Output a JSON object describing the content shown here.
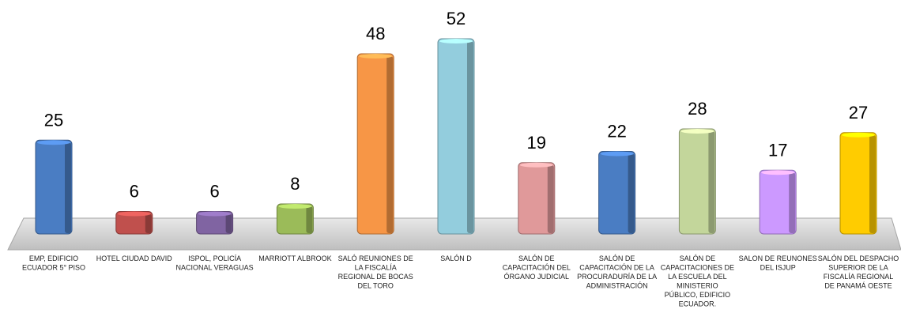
{
  "chart_data": {
    "type": "bar",
    "title": "",
    "xlabel": "",
    "ylabel": "",
    "ylim": [
      0,
      55
    ],
    "grid": false,
    "legend": "none",
    "categories": [
      "EMP, EDIFICIO ECUADOR 5° PISO",
      "HOTEL CIUDAD DAVID",
      "ISPOL, POLICÍA NACIONAL VERAGUAS",
      "MARRIOTT ALBROOK",
      "SALÓ REUNIONES DE LA FISCALÍA REGIONAL DE BOCAS DEL TORO",
      "SALÓN D",
      "SALÓN DE CAPACITACIÓN  DEL ÓRGANO JUDICIAL",
      "SALÓN DE CAPACITACIÓN DE LA PROCURADURÍA DE LA ADMINISTRACIÓN",
      "SALÓN DE CAPACITACIONES DE LA ESCUELA DEL MINISTERIO PÚBLICO, EDIFICIO ECUADOR.",
      "SALON DE REUNONES DEL ISJUP",
      "SALÓN DEL DESPACHO SUPERIOR DE LA FISCALÍA REGIONAL DE PANAMÁ OESTE"
    ],
    "values": [
      25,
      6,
      6,
      8,
      48,
      52,
      19,
      22,
      28,
      17,
      27
    ],
    "colors": [
      "#4a7dc3",
      "#c0504d",
      "#8064a2",
      "#9bbb59",
      "#f79646",
      "#93cddd",
      "#e0999a",
      "#4a7dc3",
      "#c3d69b",
      "#cc99ff",
      "#ffcc00"
    ]
  }
}
